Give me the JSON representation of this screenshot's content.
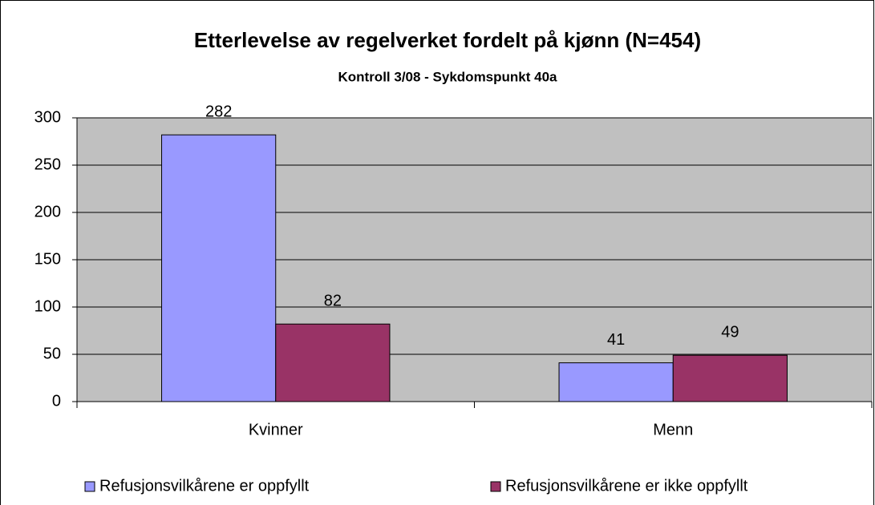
{
  "chart_data": {
    "type": "bar",
    "title": "Etterlevelse av regelverket fordelt på kjønn (N=454)",
    "subtitle": "Kontroll 3/08 - Sykdomspunkt 40a",
    "categories": [
      "Kvinner",
      "Menn"
    ],
    "series": [
      {
        "name": "Refusjonsvilkårene er oppfyllt",
        "color": "#9999ff",
        "values": [
          282,
          41
        ]
      },
      {
        "name": "Refusjonsvilkårene er ikke oppfyllt",
        "color": "#993366",
        "values": [
          82,
          49
        ]
      }
    ],
    "ylim": [
      0,
      300
    ],
    "yticks": [
      0,
      50,
      100,
      150,
      200,
      250,
      300
    ],
    "grid": true,
    "legend": "bottom"
  }
}
